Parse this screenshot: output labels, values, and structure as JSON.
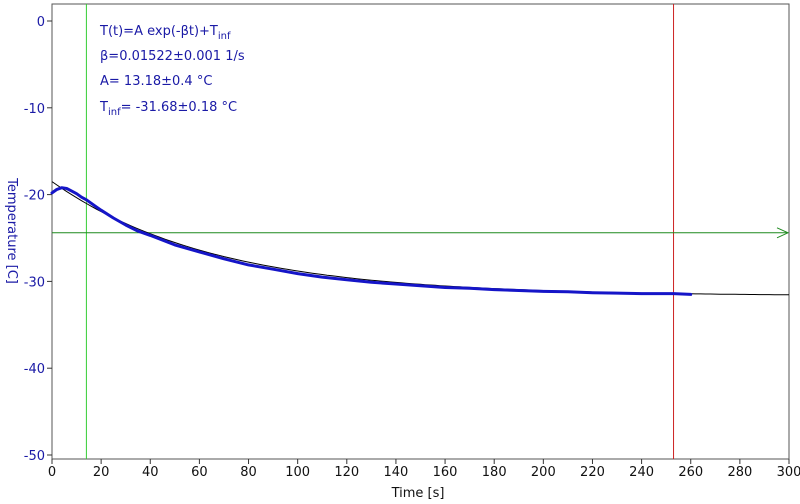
{
  "chart_data": {
    "type": "line",
    "xlabel": "Time [s]",
    "ylabel": "Temperature [C]",
    "xlim": [
      0,
      300
    ],
    "ylim": [
      -50,
      1
    ],
    "xticks": [
      0,
      20,
      40,
      60,
      80,
      100,
      120,
      140,
      160,
      180,
      200,
      220,
      240,
      260,
      280,
      300
    ],
    "yticks": [
      0,
      -10,
      -20,
      -30,
      -40,
      -50
    ],
    "grid": false,
    "series": [
      {
        "kind": "measured",
        "color": "#1515c8",
        "x": [
          0,
          2,
          4,
          6,
          8,
          10,
          12,
          14,
          16,
          18,
          20,
          25,
          30,
          35,
          40,
          50,
          60,
          70,
          80,
          90,
          100,
          110,
          120,
          130,
          140,
          150,
          160,
          170,
          180,
          190,
          200,
          210,
          220,
          230,
          240,
          250,
          253,
          260
        ],
        "y": [
          -19.8,
          -19.4,
          -19.2,
          -19.3,
          -19.6,
          -19.9,
          -20.3,
          -20.6,
          -21.0,
          -21.4,
          -21.8,
          -22.7,
          -23.5,
          -24.2,
          -24.7,
          -25.8,
          -26.6,
          -27.4,
          -28.1,
          -28.6,
          -29.1,
          -29.5,
          -29.8,
          -30.1,
          -30.3,
          -30.5,
          -30.7,
          -30.8,
          -30.95,
          -31.05,
          -31.15,
          -31.2,
          -31.3,
          -31.35,
          -31.4,
          -31.4,
          -31.4,
          -31.5
        ]
      },
      {
        "kind": "fit",
        "color": "#000000",
        "function": "A*exp(-beta*t)+Tinf",
        "A": 13.18,
        "beta": 0.01522,
        "Tinf": -31.68,
        "x_range": [
          0,
          300
        ]
      }
    ],
    "cursors": {
      "vertical_green_x": 14,
      "vertical_red_x": 253,
      "horizontal_green_y": -24.4
    },
    "annotations": {
      "formula_prefix": "T(t)=A exp(-βt)+T",
      "formula_sub": "inf",
      "beta_line": "β=0.01522±0.001 1/s",
      "A_line": "A= 13.18±0.4 °C",
      "tinf_prefix": "T",
      "tinf_sub": "inf",
      "tinf_suffix": "= -31.68±0.18 °C"
    }
  }
}
